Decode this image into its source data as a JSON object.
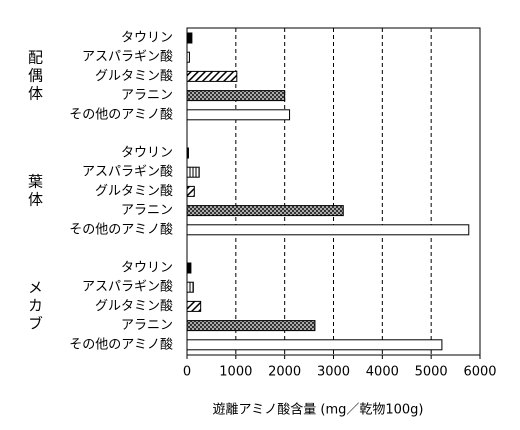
{
  "chart_data": {
    "type": "bar",
    "orientation": "horizontal",
    "categories": [
      "タウリン",
      "アスパラギン酸",
      "グルタミン酸",
      "アラニン",
      "その他のアミノ酸"
    ],
    "patterns": [
      "solid",
      "vertical",
      "diagonal",
      "dots",
      "empty"
    ],
    "series": [
      {
        "name": "配偶体",
        "color": "#000000",
        "values": [
          100,
          50,
          1020,
          2000,
          2100
        ]
      },
      {
        "name": "葉体",
        "color": "#000000",
        "values": [
          30,
          250,
          150,
          3200,
          5770
        ]
      },
      {
        "name": "メカブ",
        "color": "#000000",
        "values": [
          80,
          130,
          280,
          2620,
          5220
        ]
      }
    ],
    "xlabel": "遊離アミノ酸含量 (mg／乾物100g)",
    "xlim": [
      0,
      6000
    ],
    "xticks": [
      0,
      1000,
      2000,
      3000,
      4000,
      5000,
      6000
    ],
    "grid": true
  }
}
